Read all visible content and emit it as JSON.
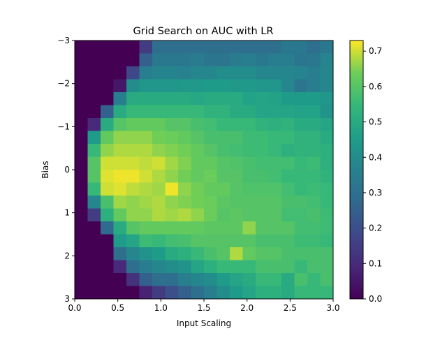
{
  "chart_data": {
    "type": "heatmap",
    "title": "Grid Search on AUC with LR",
    "xlabel": "Input Scaling",
    "ylabel": "Bias",
    "xlim": [
      0.0,
      3.0
    ],
    "ylim": [
      -3,
      3
    ],
    "x_ticks": [
      "0.0",
      "0.5",
      "1.0",
      "1.5",
      "2.0",
      "2.5",
      "3.0"
    ],
    "x_tick_values": [
      0.0,
      0.5,
      1.0,
      1.5,
      2.0,
      2.5,
      3.0
    ],
    "y_ticks": [
      "−3",
      "−2",
      "−1",
      "0",
      "1",
      "2",
      "3"
    ],
    "y_tick_values": [
      -3,
      -2,
      -1,
      0,
      1,
      2,
      3
    ],
    "colorbar": {
      "colormap": "viridis",
      "vmin": 0.0,
      "vmax": 0.73,
      "ticks": [
        "0.0",
        "0.1",
        "0.2",
        "0.3",
        "0.4",
        "0.5",
        "0.6",
        "0.7"
      ],
      "tick_values": [
        0.0,
        0.1,
        0.2,
        0.3,
        0.4,
        0.5,
        0.6,
        0.7
      ]
    },
    "grid": false,
    "rows": 20,
    "cols": 20,
    "values": [
      [
        0.0,
        0.0,
        0.0,
        0.0,
        0.0,
        0.15,
        0.3,
        0.3,
        0.3,
        0.3,
        0.3,
        0.3,
        0.3,
        0.3,
        0.3,
        0.3,
        0.33,
        0.33,
        0.3,
        0.33
      ],
      [
        0.0,
        0.0,
        0.0,
        0.0,
        0.0,
        0.25,
        0.33,
        0.33,
        0.33,
        0.34,
        0.32,
        0.32,
        0.34,
        0.35,
        0.33,
        0.35,
        0.35,
        0.32,
        0.33,
        0.37
      ],
      [
        0.0,
        0.0,
        0.0,
        0.0,
        0.18,
        0.35,
        0.37,
        0.37,
        0.36,
        0.38,
        0.38,
        0.4,
        0.4,
        0.4,
        0.38,
        0.38,
        0.38,
        0.37,
        0.35,
        0.38
      ],
      [
        0.0,
        0.0,
        0.0,
        0.05,
        0.4,
        0.43,
        0.43,
        0.43,
        0.44,
        0.44,
        0.45,
        0.45,
        0.44,
        0.44,
        0.43,
        0.43,
        0.38,
        0.32,
        0.35,
        0.38
      ],
      [
        0.0,
        0.0,
        0.0,
        0.35,
        0.5,
        0.5,
        0.5,
        0.5,
        0.5,
        0.49,
        0.5,
        0.5,
        0.5,
        0.47,
        0.48,
        0.47,
        0.45,
        0.45,
        0.45,
        0.43
      ],
      [
        0.0,
        0.0,
        0.25,
        0.5,
        0.55,
        0.55,
        0.55,
        0.55,
        0.55,
        0.55,
        0.53,
        0.53,
        0.5,
        0.5,
        0.48,
        0.48,
        0.48,
        0.47,
        0.47,
        0.42
      ],
      [
        0.0,
        0.1,
        0.5,
        0.6,
        0.62,
        0.62,
        0.62,
        0.6,
        0.6,
        0.58,
        0.57,
        0.55,
        0.55,
        0.55,
        0.53,
        0.52,
        0.53,
        0.5,
        0.5,
        0.48
      ],
      [
        0.0,
        0.45,
        0.62,
        0.66,
        0.66,
        0.66,
        0.64,
        0.63,
        0.62,
        0.6,
        0.58,
        0.58,
        0.58,
        0.56,
        0.56,
        0.55,
        0.55,
        0.53,
        0.53,
        0.5
      ],
      [
        0.0,
        0.55,
        0.66,
        0.68,
        0.68,
        0.68,
        0.66,
        0.65,
        0.64,
        0.62,
        0.6,
        0.58,
        0.57,
        0.56,
        0.56,
        0.55,
        0.52,
        0.53,
        0.53,
        0.52
      ],
      [
        0.0,
        0.6,
        0.7,
        0.7,
        0.7,
        0.69,
        0.7,
        0.67,
        0.65,
        0.62,
        0.62,
        0.6,
        0.59,
        0.58,
        0.57,
        0.57,
        0.57,
        0.55,
        0.56,
        0.52
      ],
      [
        0.0,
        0.6,
        0.71,
        0.72,
        0.72,
        0.7,
        0.68,
        0.66,
        0.64,
        0.62,
        0.63,
        0.6,
        0.6,
        0.58,
        0.58,
        0.57,
        0.55,
        0.55,
        0.55,
        0.53
      ],
      [
        0.0,
        0.55,
        0.7,
        0.71,
        0.69,
        0.68,
        0.67,
        0.72,
        0.66,
        0.64,
        0.62,
        0.62,
        0.6,
        0.59,
        0.59,
        0.59,
        0.57,
        0.55,
        0.56,
        0.55
      ],
      [
        0.0,
        0.38,
        0.58,
        0.67,
        0.66,
        0.67,
        0.68,
        0.66,
        0.65,
        0.64,
        0.63,
        0.61,
        0.6,
        0.6,
        0.6,
        0.6,
        0.58,
        0.58,
        0.57,
        0.55
      ],
      [
        0.0,
        0.15,
        0.52,
        0.62,
        0.66,
        0.66,
        0.68,
        0.67,
        0.68,
        0.66,
        0.63,
        0.6,
        0.61,
        0.6,
        0.6,
        0.6,
        0.57,
        0.57,
        0.58,
        0.56
      ],
      [
        0.0,
        0.0,
        0.28,
        0.5,
        0.6,
        0.62,
        0.62,
        0.62,
        0.62,
        0.62,
        0.61,
        0.61,
        0.61,
        0.66,
        0.6,
        0.6,
        0.6,
        0.57,
        0.57,
        0.56
      ],
      [
        0.0,
        0.0,
        0.0,
        0.45,
        0.48,
        0.56,
        0.55,
        0.57,
        0.58,
        0.6,
        0.6,
        0.6,
        0.6,
        0.6,
        0.58,
        0.58,
        0.58,
        0.56,
        0.56,
        0.55
      ],
      [
        0.0,
        0.0,
        0.0,
        0.3,
        0.38,
        0.42,
        0.45,
        0.5,
        0.52,
        0.55,
        0.58,
        0.6,
        0.68,
        0.62,
        0.6,
        0.6,
        0.58,
        0.58,
        0.58,
        0.58
      ],
      [
        0.0,
        0.0,
        0.0,
        0.1,
        0.3,
        0.35,
        0.38,
        0.4,
        0.42,
        0.48,
        0.52,
        0.55,
        0.55,
        0.55,
        0.58,
        0.58,
        0.58,
        0.55,
        0.58,
        0.58
      ],
      [
        0.0,
        0.0,
        0.0,
        0.0,
        0.12,
        0.25,
        0.3,
        0.3,
        0.35,
        0.38,
        0.4,
        0.45,
        0.48,
        0.5,
        0.55,
        0.55,
        0.5,
        0.58,
        0.55,
        0.58
      ],
      [
        0.0,
        0.0,
        0.0,
        0.0,
        0.0,
        0.08,
        0.15,
        0.2,
        0.25,
        0.3,
        0.35,
        0.4,
        0.45,
        0.48,
        0.52,
        0.52,
        0.5,
        0.55,
        0.55,
        0.55
      ]
    ]
  }
}
